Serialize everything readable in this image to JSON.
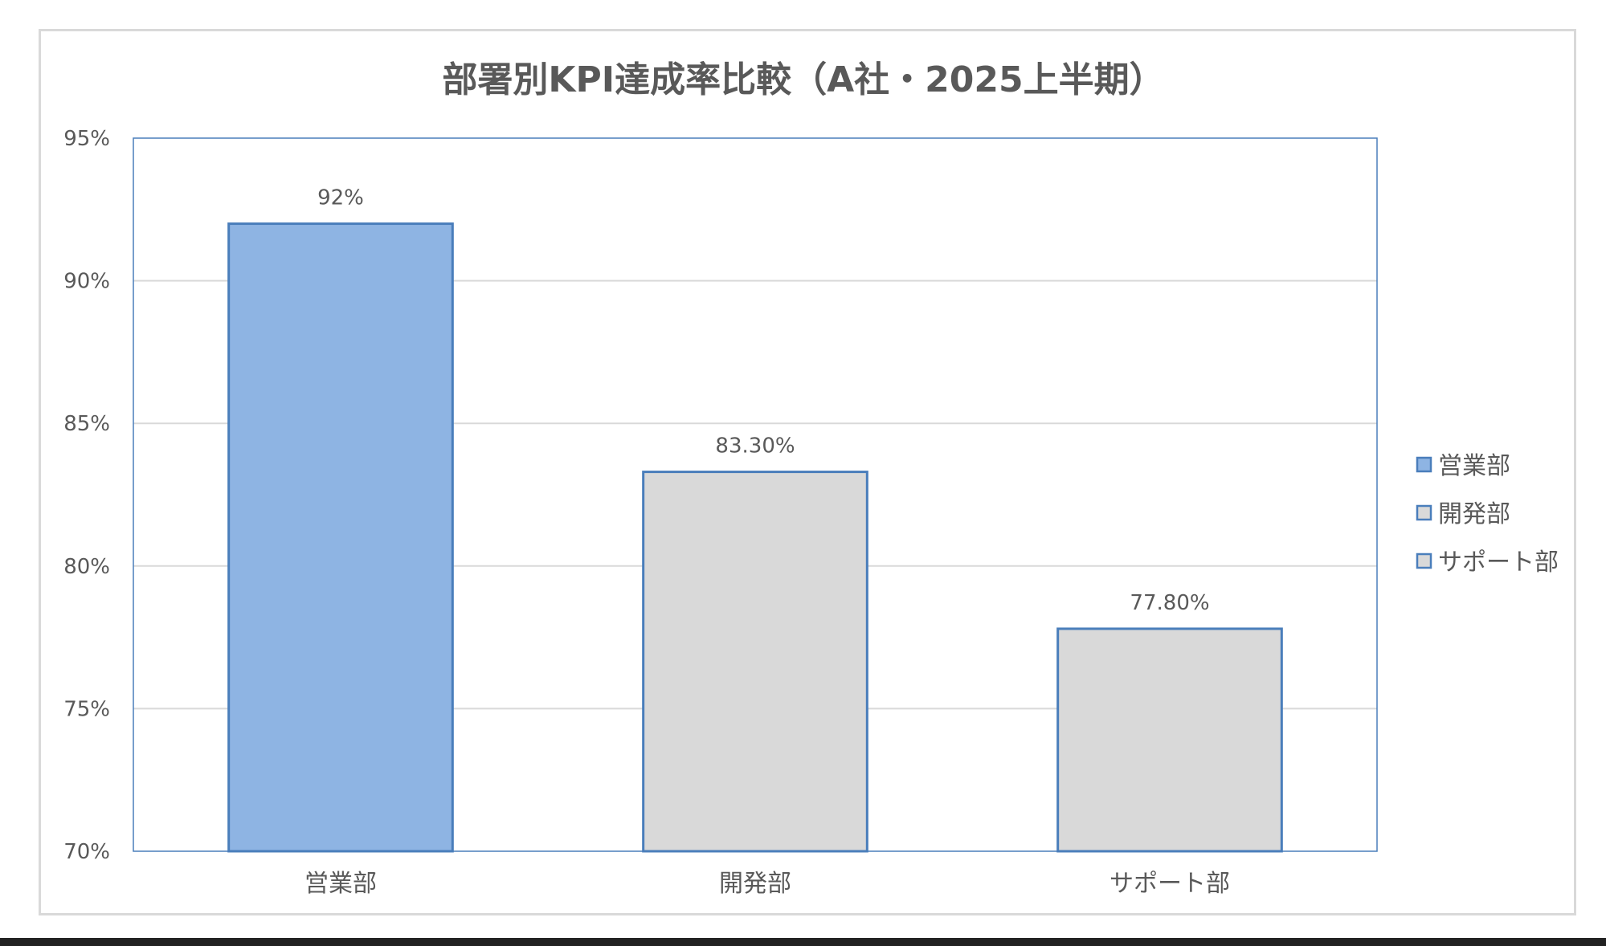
{
  "chart_data": {
    "type": "bar",
    "title": "部署別KPI達成率比較（A社・2025上半期）",
    "categories": [
      "営業部",
      "開発部",
      "サポート部"
    ],
    "values": [
      92,
      83.3,
      77.8
    ],
    "data_labels": [
      "92%",
      "83.30%",
      "77.80%"
    ],
    "bar_colors": [
      "#8eb4e3",
      "#d9d9d9",
      "#d9d9d9"
    ],
    "bar_border_color": "#4a7ebb",
    "ylim": [
      70,
      95
    ],
    "yticks": [
      70,
      75,
      80,
      85,
      90,
      95
    ],
    "ytick_labels": [
      "70%",
      "75%",
      "80%",
      "85%",
      "90%",
      "95%"
    ],
    "grid": true,
    "legend": {
      "position": "right",
      "entries": [
        {
          "label": "営業部",
          "color": "#8eb4e3"
        },
        {
          "label": "開発部",
          "color": "#d9d9d9"
        },
        {
          "label": "サポート部",
          "color": "#d9d9d9"
        }
      ]
    }
  }
}
